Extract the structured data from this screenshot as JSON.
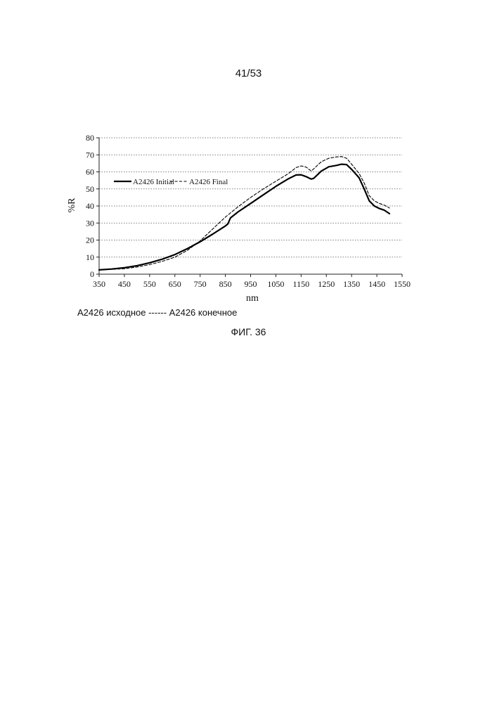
{
  "page": {
    "number": "41/53",
    "caption_legend": "A2426 исходное ------ A2426 конечное",
    "figure_label": "ФИГ. 36"
  },
  "chart_data": {
    "type": "line",
    "title": "",
    "xlabel": "nm",
    "ylabel": "%R",
    "xlim": [
      350,
      1550
    ],
    "ylim": [
      0,
      80
    ],
    "xticks": [
      350,
      450,
      550,
      650,
      750,
      850,
      950,
      1050,
      1150,
      1250,
      1350,
      1450,
      1550
    ],
    "yticks": [
      0,
      10,
      20,
      30,
      40,
      50,
      60,
      70,
      80
    ],
    "grid": "horizontal-dotted",
    "legend_position": "top-left",
    "series": [
      {
        "name": "A2426 Initial",
        "style": "solid",
        "color": "#000000",
        "x": [
          350,
          400,
          450,
          500,
          550,
          600,
          650,
          700,
          750,
          800,
          850,
          860,
          870,
          900,
          950,
          1000,
          1050,
          1100,
          1130,
          1150,
          1170,
          1190,
          1200,
          1230,
          1260,
          1290,
          1310,
          1330,
          1350,
          1380,
          1400,
          1420,
          1440,
          1460,
          1480,
          1500
        ],
        "y": [
          2.5,
          3,
          3.8,
          5,
          6.7,
          8.8,
          11.5,
          15,
          19,
          23.5,
          28.3,
          29.5,
          33,
          36.5,
          41.5,
          46.5,
          51.5,
          56,
          58.2,
          58.3,
          57.2,
          55.8,
          56.2,
          60.5,
          63,
          63.8,
          64.5,
          64.3,
          61.5,
          56.5,
          50,
          43,
          40,
          38.5,
          37.5,
          35.5
        ]
      },
      {
        "name": "A2426 Final",
        "style": "dashed",
        "color": "#000000",
        "x": [
          350,
          400,
          450,
          500,
          550,
          600,
          650,
          700,
          750,
          800,
          850,
          900,
          950,
          1000,
          1050,
          1100,
          1130,
          1150,
          1170,
          1190,
          1200,
          1230,
          1260,
          1290,
          1310,
          1330,
          1350,
          1380,
          1400,
          1420,
          1440,
          1460,
          1480,
          1500
        ],
        "y": [
          2.5,
          2.8,
          3.2,
          4.2,
          5.6,
          7.5,
          10,
          14,
          19.5,
          26.5,
          33.5,
          39.5,
          45,
          50,
          54.5,
          59,
          62.5,
          63.5,
          62.8,
          60.5,
          61.8,
          66,
          68,
          68.8,
          69,
          68,
          64.5,
          59,
          53.5,
          46,
          43,
          41.5,
          40.5,
          38.8
        ]
      }
    ]
  }
}
